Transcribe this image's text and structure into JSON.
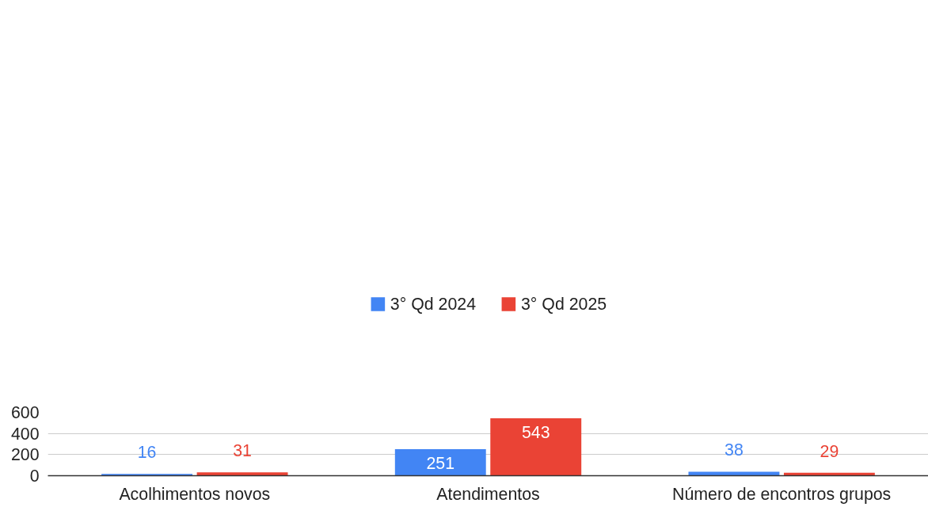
{
  "chart_data": {
    "type": "bar",
    "categories": [
      "Acolhimentos novos",
      "Atendimentos",
      "Número de encontros grupos"
    ],
    "series": [
      {
        "name": "3° Qd 2024",
        "color": "#4285f4",
        "values": [
          16,
          251,
          38
        ]
      },
      {
        "name": "3° Qd 2025",
        "color": "#ea4335",
        "values": [
          31,
          543,
          29
        ]
      }
    ],
    "ylim": [
      0,
      600
    ],
    "yticks": [
      0,
      200,
      400,
      600
    ],
    "grid": "y",
    "legend": "top",
    "data_labels": true
  }
}
